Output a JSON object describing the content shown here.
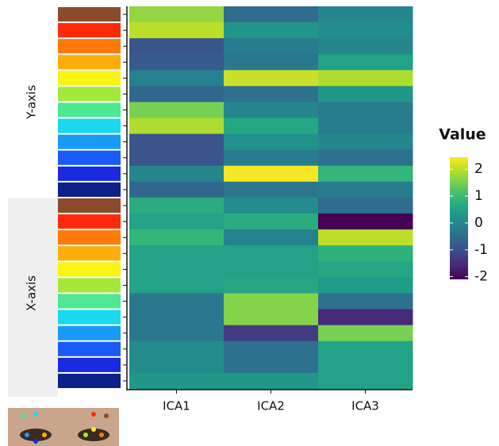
{
  "chart_data": {
    "type": "heatmap",
    "categories": [
      "ICA1",
      "ICA2",
      "ICA3"
    ],
    "row_groups": [
      "Y-axis",
      "X-axis"
    ],
    "swatch_colors": [
      "#8b4a2b",
      "#ff2a0a",
      "#ff7a0a",
      "#ffad0a",
      "#f8f414",
      "#a6e83a",
      "#4ee892",
      "#1ad8f0",
      "#1a9af8",
      "#1a5af8",
      "#1a2ae0",
      "#10208a"
    ],
    "z": [
      [
        1.7,
        -0.5,
        0.0
      ],
      [
        2.0,
        0.3,
        0.1
      ],
      [
        -0.9,
        -0.2,
        0.0
      ],
      [
        -0.8,
        -0.3,
        0.5
      ],
      [
        -0.1,
        2.1,
        1.9
      ],
      [
        -0.6,
        -0.4,
        0.3
      ],
      [
        1.5,
        0.0,
        -0.2
      ],
      [
        1.9,
        0.6,
        -0.2
      ],
      [
        -0.9,
        0.2,
        0.0
      ],
      [
        -0.9,
        -0.2,
        -0.4
      ],
      [
        0.0,
        2.4,
        0.9
      ],
      [
        -0.6,
        -0.3,
        -0.2
      ],
      [
        0.7,
        0.1,
        -0.5
      ],
      [
        0.5,
        0.7,
        -2.1
      ],
      [
        0.9,
        -0.1,
        2.0
      ],
      [
        0.5,
        0.5,
        0.8
      ],
      [
        0.5,
        0.5,
        0.6
      ],
      [
        0.5,
        0.6,
        0.4
      ],
      [
        -0.3,
        1.6,
        -0.4
      ],
      [
        -0.3,
        1.6,
        -1.6
      ],
      [
        -0.3,
        -1.3,
        1.5
      ],
      [
        0.1,
        -0.4,
        0.5
      ],
      [
        0.1,
        -0.4,
        0.5
      ],
      [
        0.3,
        0.3,
        0.5
      ]
    ],
    "colorbar_title": "Value",
    "zlim": [
      -2.1,
      2.45
    ],
    "zticks": [
      2,
      1,
      0,
      -1,
      -2
    ],
    "colormap": [
      "#440154",
      "#482878",
      "#3e4989",
      "#31688e",
      "#26828e",
      "#1f9e89",
      "#35b779",
      "#6ece58",
      "#b5de2b",
      "#fde725"
    ]
  }
}
